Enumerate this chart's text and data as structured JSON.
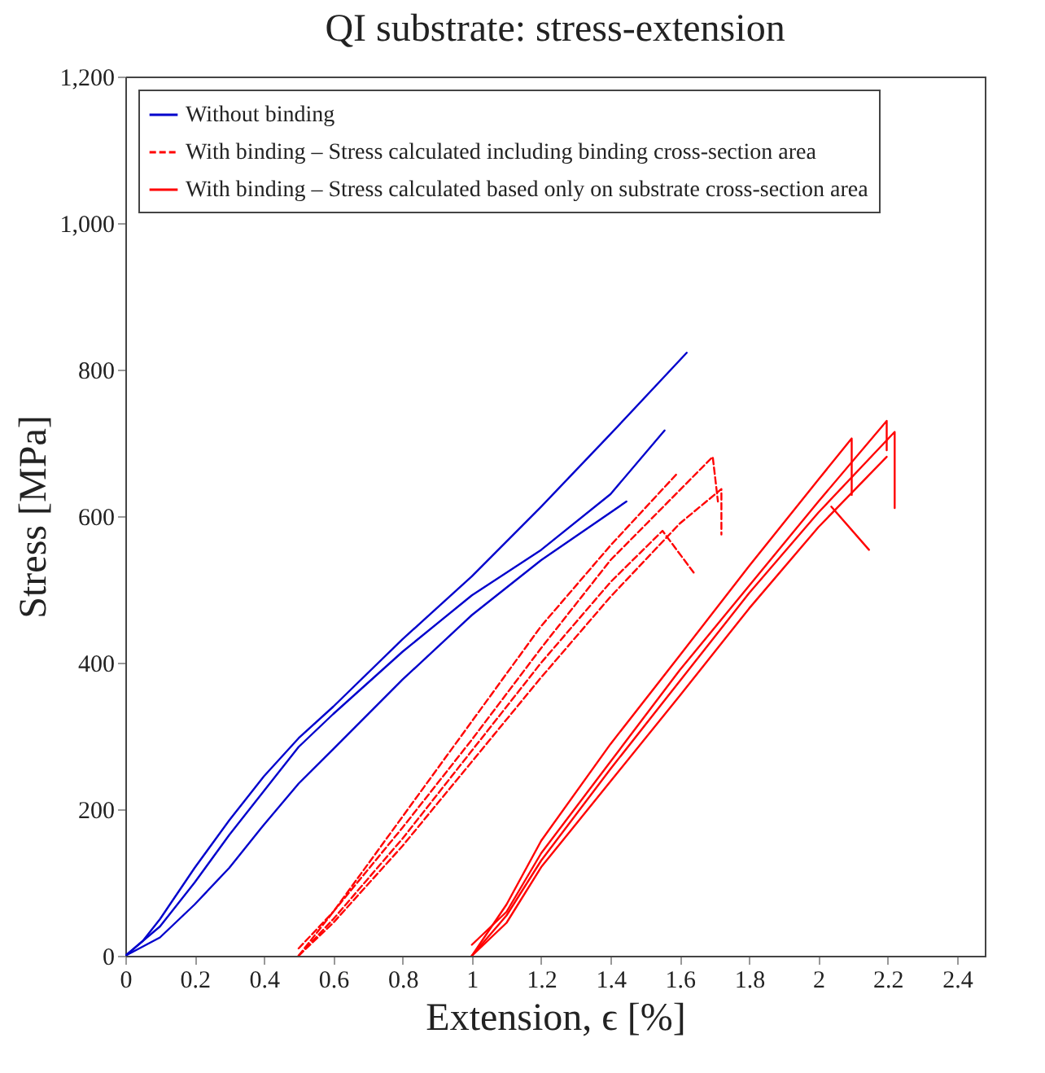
{
  "chart_data": {
    "type": "line",
    "title": "QI substrate: stress-extension",
    "xlabel": "Extension, ϵ [%]",
    "ylabel": "Stress [MPa]",
    "xlim": [
      0,
      2.48
    ],
    "xticks": [
      0,
      0.2,
      0.4,
      0.6,
      0.8,
      1,
      1.2,
      1.4,
      1.6,
      1.8,
      2,
      2.2,
      2.4
    ],
    "ylim": [
      0,
      1200
    ],
    "yticks": [
      0,
      200,
      400,
      600,
      800,
      {
        "value": 1000,
        "label": "1,000"
      },
      {
        "value": 1200,
        "label": "1,200"
      }
    ],
    "grid": false,
    "legend": "top left",
    "marker": "none",
    "series": [
      {
        "name": "Without binding",
        "color": "#0000cc",
        "line_style": "solid",
        "x": [
          0,
          0.05,
          0.1,
          0.2,
          0.3,
          0.4,
          0.5,
          0.6,
          0.8,
          1.0,
          1.2,
          1.4,
          1.62
        ],
        "values": [
          0,
          20,
          50,
          120,
          185,
          245,
          297,
          340,
          432,
          518,
          613,
          712,
          823
        ]
      },
      {
        "color": "#0000cc",
        "line_style": "solid",
        "x": [
          0,
          0.1,
          0.2,
          0.3,
          0.4,
          0.5,
          0.6,
          0.8,
          1.0,
          1.2,
          1.4,
          1.556
        ],
        "values": [
          0,
          40,
          100,
          165,
          225,
          285,
          330,
          415,
          492,
          554,
          630,
          717
        ]
      },
      {
        "color": "#0000cc",
        "line_style": "solid",
        "x": [
          0,
          0.1,
          0.2,
          0.3,
          0.4,
          0.5,
          0.6,
          0.8,
          1.0,
          1.2,
          1.446
        ],
        "values": [
          0,
          25,
          70,
          120,
          179,
          235,
          282,
          377,
          465,
          540,
          620
        ]
      },
      {
        "name": "With binding – Stress calculated including binding cross-section area",
        "color": "#ff0000",
        "line_style": "dashed",
        "x": [
          0.5,
          0.6,
          0.8,
          1.0,
          1.2,
          1.4,
          1.59
        ],
        "values": [
          0,
          60,
          190,
          320,
          450,
          560,
          657
        ]
      },
      {
        "color": "#ff0000",
        "line_style": "dashed",
        "x": [
          0.5,
          0.6,
          0.8,
          1.0,
          1.2,
          1.4,
          1.695,
          1.71
        ],
        "values": [
          10,
          60,
          175,
          295,
          420,
          540,
          681,
          620
        ]
      },
      {
        "color": "#ff0000",
        "line_style": "dashed",
        "x": [
          0.5,
          0.6,
          0.8,
          1.0,
          1.2,
          1.4,
          1.55,
          1.64
        ],
        "values": [
          0,
          50,
          160,
          280,
          400,
          510,
          580,
          523
        ]
      },
      {
        "color": "#ff0000",
        "line_style": "dashed",
        "x": [
          0.5,
          0.6,
          0.8,
          1.0,
          1.2,
          1.4,
          1.6,
          1.72,
          1.72
        ],
        "values": [
          0,
          45,
          150,
          265,
          380,
          490,
          590,
          637,
          575
        ]
      },
      {
        "name": "With binding – Stress calculated based only on substrate cross-section area",
        "color": "#ff0000",
        "line_style": "solid",
        "x": [
          1,
          1.1,
          1.2,
          1.4,
          1.6,
          1.8,
          2.0,
          2.096,
          2.096
        ],
        "values": [
          0,
          70,
          157,
          289,
          410,
          532,
          650,
          706,
          629
        ]
      },
      {
        "color": "#ff0000",
        "line_style": "solid",
        "x": [
          1,
          1.1,
          1.2,
          1.4,
          1.6,
          1.8,
          2.0,
          2.197,
          2.197
        ],
        "values": [
          15,
          60,
          140,
          265,
          390,
          505,
          620,
          730,
          690
        ]
      },
      {
        "color": "#ff0000",
        "line_style": "solid",
        "x": [
          1,
          1.1,
          1.2,
          1.4,
          1.6,
          1.8,
          2.0,
          2.22,
          2.22
        ],
        "values": [
          0,
          55,
          130,
          255,
          375,
          495,
          605,
          715,
          611
        ]
      },
      {
        "color": "#ff0000",
        "line_style": "solid",
        "x": [
          1,
          1.1,
          1.2,
          1.4,
          1.6,
          1.8,
          2.0,
          2.197
        ],
        "values": [
          0,
          45,
          121,
          238,
          355,
          474,
          585,
          681
        ]
      },
      {
        "color": "#ff0000",
        "line_style": "solid",
        "x": [
          2.037,
          2.146
        ],
        "values": [
          613,
          554
        ]
      }
    ]
  }
}
